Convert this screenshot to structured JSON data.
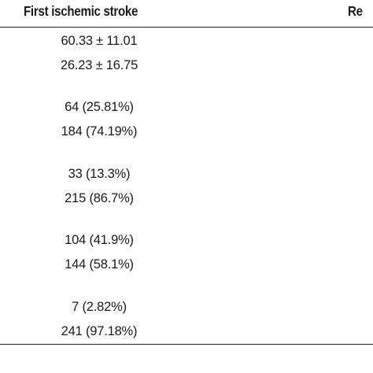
{
  "table": {
    "headers": {
      "first": "First ischemic stroke",
      "second_partial": "Re"
    },
    "first_column_values": [
      "60.33 ± 11.01",
      "26.23 ± 16.75",
      "64 (25.81%)",
      "184 (74.19%)",
      "33 (13.3%)",
      "215 (86.7%)",
      "104 (41.9%)",
      "144 (58.1%)",
      "7 (2.82%)",
      "241 (97.18%)"
    ]
  }
}
